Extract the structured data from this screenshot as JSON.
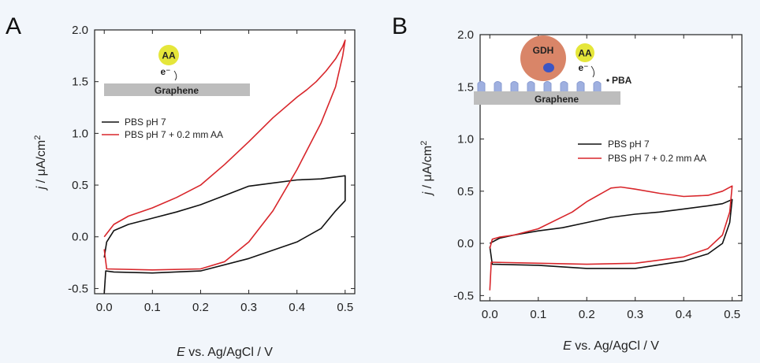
{
  "chart_data": [
    {
      "type": "line",
      "panel": "A",
      "xlabel_italic": "E",
      "xlabel_rest": " vs. Ag/AgCl / V",
      "ylabel_italic": "j",
      "ylabel_rest": " / μA/cm",
      "ylabel_sup": "2",
      "xlim": [
        -0.02,
        0.52
      ],
      "ylim": [
        -0.55,
        2.0
      ],
      "xticks": [
        0.0,
        0.1,
        0.2,
        0.3,
        0.4,
        0.5
      ],
      "xtick_labels": [
        "0.0",
        "0.1",
        "0.2",
        "0.3",
        "0.4",
        "0.5"
      ],
      "yticks": [
        -0.5,
        0.0,
        0.5,
        1.0,
        1.5,
        2.0
      ],
      "ytick_labels": [
        "-0.5",
        "0.0",
        "0.5",
        "1.0",
        "1.5",
        "2.0"
      ],
      "legend_position": "center-left",
      "series": [
        {
          "name": "PBS pH 7",
          "color": "#111111",
          "points": [
            [
              0.0,
              -0.55
            ],
            [
              0.003,
              -0.33
            ],
            [
              0.02,
              -0.34
            ],
            [
              0.1,
              -0.35
            ],
            [
              0.2,
              -0.33
            ],
            [
              0.3,
              -0.21
            ],
            [
              0.4,
              -0.05
            ],
            [
              0.45,
              0.08
            ],
            [
              0.48,
              0.25
            ],
            [
              0.5,
              0.35
            ],
            [
              0.5,
              0.59
            ],
            [
              0.45,
              0.56
            ],
            [
              0.4,
              0.55
            ],
            [
              0.35,
              0.52
            ],
            [
              0.3,
              0.49
            ],
            [
              0.25,
              0.4
            ],
            [
              0.2,
              0.31
            ],
            [
              0.15,
              0.24
            ],
            [
              0.1,
              0.18
            ],
            [
              0.05,
              0.12
            ],
            [
              0.02,
              0.06
            ],
            [
              0.005,
              -0.05
            ],
            [
              0.0,
              -0.2
            ]
          ]
        },
        {
          "name": "PBS pH 7 + 0.2 mm AA",
          "color": "#d8262b",
          "points": [
            [
              0.0,
              -0.12
            ],
            [
              0.005,
              -0.31
            ],
            [
              0.1,
              -0.32
            ],
            [
              0.2,
              -0.31
            ],
            [
              0.25,
              -0.24
            ],
            [
              0.3,
              -0.05
            ],
            [
              0.35,
              0.25
            ],
            [
              0.4,
              0.65
            ],
            [
              0.45,
              1.1
            ],
            [
              0.48,
              1.45
            ],
            [
              0.495,
              1.75
            ],
            [
              0.5,
              1.9
            ],
            [
              0.495,
              1.84
            ],
            [
              0.48,
              1.72
            ],
            [
              0.46,
              1.6
            ],
            [
              0.44,
              1.5
            ],
            [
              0.42,
              1.42
            ],
            [
              0.4,
              1.35
            ],
            [
              0.35,
              1.15
            ],
            [
              0.3,
              0.92
            ],
            [
              0.25,
              0.7
            ],
            [
              0.2,
              0.5
            ],
            [
              0.15,
              0.38
            ],
            [
              0.1,
              0.28
            ],
            [
              0.05,
              0.2
            ],
            [
              0.02,
              0.12
            ],
            [
              0.0,
              0.0
            ]
          ]
        }
      ],
      "inset": {
        "molecule": "AA",
        "electron": "e⁻",
        "electrode": "Graphene"
      }
    },
    {
      "type": "line",
      "panel": "B",
      "xlabel_italic": "E",
      "xlabel_rest": " vs. Ag/AgCl / V",
      "ylabel_italic": "j",
      "ylabel_rest": " / μA/cm",
      "ylabel_sup": "2",
      "xlim": [
        -0.02,
        0.52
      ],
      "ylim": [
        -0.55,
        2.0
      ],
      "xticks": [
        0.0,
        0.1,
        0.2,
        0.3,
        0.4,
        0.5
      ],
      "xtick_labels": [
        "0.0",
        "0.1",
        "0.2",
        "0.3",
        "0.4",
        "0.5"
      ],
      "yticks": [
        -0.5,
        0.0,
        0.5,
        1.0,
        1.5,
        2.0
      ],
      "ytick_labels": [
        "-0.5",
        "0.0",
        "0.5",
        "1.0",
        "1.5",
        "2.0"
      ],
      "legend_position": "center-right",
      "series": [
        {
          "name": "PBS pH 7",
          "color": "#111111",
          "points": [
            [
              0.0,
              -0.03
            ],
            [
              0.005,
              -0.2
            ],
            [
              0.1,
              -0.21
            ],
            [
              0.2,
              -0.24
            ],
            [
              0.3,
              -0.24
            ],
            [
              0.4,
              -0.17
            ],
            [
              0.45,
              -0.1
            ],
            [
              0.48,
              0.0
            ],
            [
              0.495,
              0.2
            ],
            [
              0.5,
              0.42
            ],
            [
              0.48,
              0.38
            ],
            [
              0.45,
              0.36
            ],
            [
              0.4,
              0.33
            ],
            [
              0.35,
              0.3
            ],
            [
              0.3,
              0.28
            ],
            [
              0.25,
              0.25
            ],
            [
              0.2,
              0.2
            ],
            [
              0.15,
              0.15
            ],
            [
              0.1,
              0.12
            ],
            [
              0.05,
              0.08
            ],
            [
              0.02,
              0.05
            ],
            [
              0.0,
              0.0
            ]
          ]
        },
        {
          "name": "PBS pH 7 + 0.2 mm AA",
          "color": "#d8262b",
          "points": [
            [
              0.0,
              -0.45
            ],
            [
              0.003,
              -0.18
            ],
            [
              0.1,
              -0.19
            ],
            [
              0.2,
              -0.2
            ],
            [
              0.3,
              -0.19
            ],
            [
              0.4,
              -0.13
            ],
            [
              0.45,
              -0.05
            ],
            [
              0.48,
              0.08
            ],
            [
              0.495,
              0.3
            ],
            [
              0.5,
              0.55
            ],
            [
              0.48,
              0.5
            ],
            [
              0.45,
              0.46
            ],
            [
              0.4,
              0.45
            ],
            [
              0.35,
              0.48
            ],
            [
              0.3,
              0.52
            ],
            [
              0.27,
              0.54
            ],
            [
              0.25,
              0.53
            ],
            [
              0.2,
              0.4
            ],
            [
              0.17,
              0.3
            ],
            [
              0.1,
              0.14
            ],
            [
              0.05,
              0.08
            ],
            [
              0.02,
              0.06
            ],
            [
              0.005,
              0.04
            ],
            [
              0.0,
              -0.05
            ]
          ]
        }
      ],
      "inset": {
        "enzyme": "GDH",
        "molecule": "AA",
        "electron": "e⁻",
        "linker": "PBA",
        "electrode": "Graphene"
      }
    }
  ]
}
